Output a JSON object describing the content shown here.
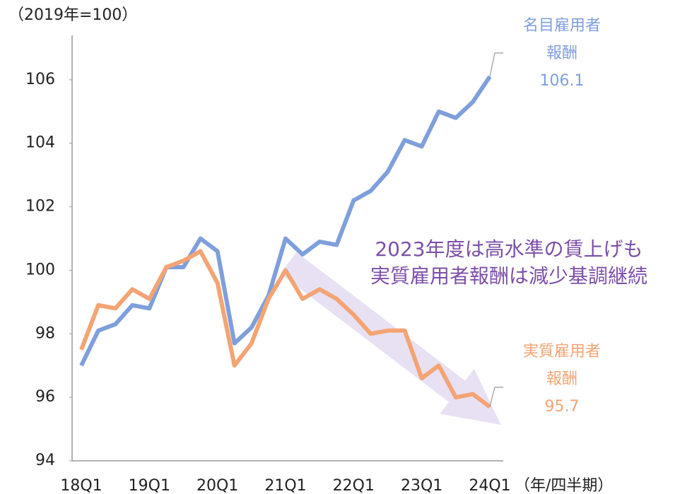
{
  "chart_data": {
    "type": "line",
    "y_unit_label": "（2019年=100）",
    "x_unit_label": "（年/四半期）",
    "annotation": [
      "2023年度は高水準の賃上げも",
      "実質雇用者報酬は減少基調継続"
    ],
    "categories": [
      "18Q1",
      null,
      null,
      null,
      "19Q1",
      null,
      null,
      null,
      "20Q1",
      null,
      null,
      null,
      "21Q1",
      null,
      null,
      null,
      "22Q1",
      null,
      null,
      null,
      "23Q1",
      null,
      null,
      null,
      "24Q1"
    ],
    "series": [
      {
        "name": [
          "名目雇用者",
          "報酬"
        ],
        "color": "#7f9fdc",
        "values": [
          97.0,
          98.1,
          98.3,
          98.9,
          98.8,
          100.1,
          100.1,
          101.0,
          100.6,
          97.7,
          98.2,
          99.2,
          101.0,
          100.5,
          100.9,
          100.8,
          102.2,
          102.5,
          103.1,
          104.1,
          103.9,
          105.0,
          104.8,
          105.3,
          106.1
        ]
      },
      {
        "name": [
          "実質雇用者",
          "報酬"
        ],
        "color": "#f4a474",
        "values": [
          97.5,
          98.9,
          98.8,
          99.4,
          99.1,
          100.1,
          100.3,
          100.6,
          99.6,
          97.0,
          97.7,
          99.1,
          100.0,
          99.1,
          99.4,
          99.1,
          98.6,
          98.0,
          98.1,
          98.1,
          96.6,
          97.0,
          96.0,
          96.1,
          95.7
        ]
      }
    ],
    "ylim": [
      94,
      107.4
    ],
    "yticks": [
      94,
      96,
      98,
      100,
      102,
      104,
      106
    ],
    "grid": false
  }
}
